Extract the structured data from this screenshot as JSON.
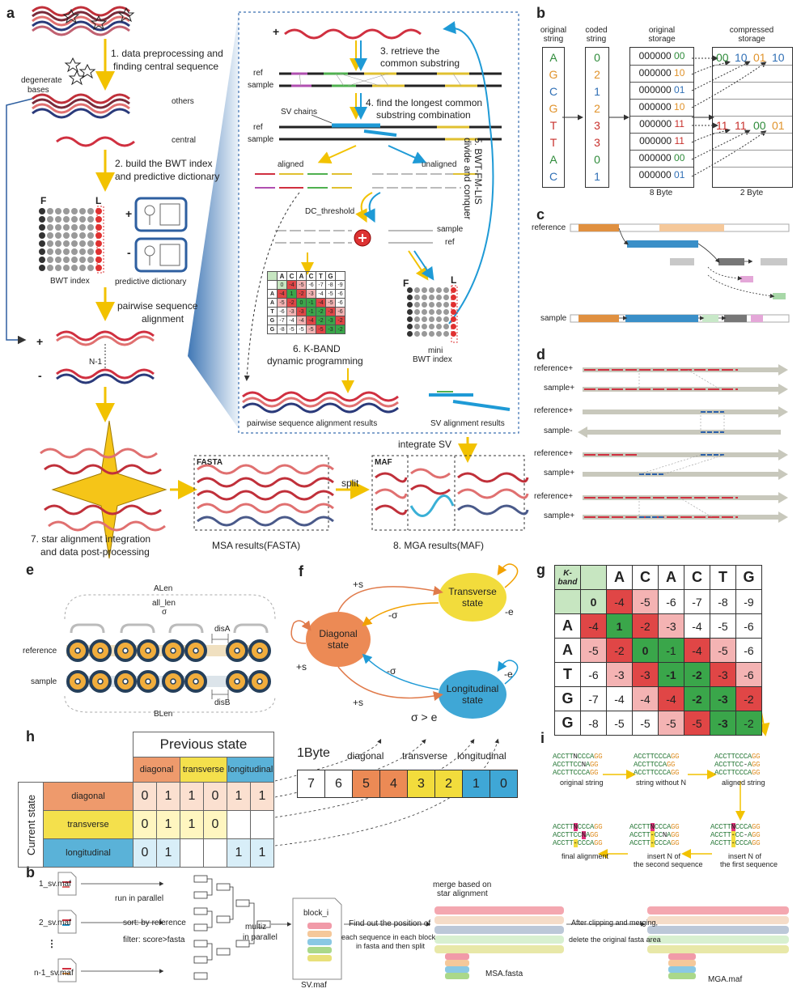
{
  "panels": {
    "a": "a",
    "b": "b",
    "c": "c",
    "d": "d",
    "e": "e",
    "f": "f",
    "g": "g",
    "h": "h",
    "i": "i",
    "b2": "b"
  },
  "panel_a": {
    "step1": "1. data preprocessing and",
    "step1b": "finding central sequence",
    "degenerate": "degenerate",
    "bases": "bases",
    "others": "others",
    "central": "central",
    "step2": "2. build the BWT index",
    "step2b": "and predictive dictionary",
    "F": "F",
    "L": "L",
    "bwt_index": "BWT index",
    "pred_dict": "predictive dictionary",
    "plus": "+",
    "minus": "-",
    "pairwise": "pairwise sequence",
    "pairwise2": "alignment",
    "n1": "N-1",
    "step3": "3. retrieve the",
    "step3b": "common substring",
    "ref": "ref",
    "sample": "sample",
    "step4": "4. find the longest common",
    "step4b": "substring combination",
    "sv_chains": "SV chains",
    "step5": "5. BWT-FM-LIS",
    "step5b": "divide and conquer",
    "aligned": "aligned",
    "unaligned": "unaligned",
    "dc_threshold": "DC_threshold",
    "step6": "6. K-BAND",
    "step6b": "dynamic programming",
    "mini_bwt": "mini",
    "mini_bwt2": "BWT index",
    "pair_results": "pairwise sequence alignment results",
    "sv_results": "SV alignment results",
    "integrate_sv": "integrate SV",
    "fasta": "FASTA",
    "maf": "MAF",
    "split": "split",
    "step7": "7. star alignment integration",
    "step7b": "and data post-processing",
    "msa_results": "MSA results(FASTA)",
    "step8": "8. MGA results(MAF)"
  },
  "mini_dp": {
    "header": [
      "",
      "A",
      "C",
      "A",
      "C",
      "T",
      "G"
    ],
    "rows": [
      [
        "",
        "0",
        "-4",
        "-5",
        "-6",
        "-7",
        "-8",
        "-9"
      ],
      [
        "A",
        "-4",
        "1",
        "-2",
        "-3",
        "-4",
        "-5",
        "-6"
      ],
      [
        "A",
        "-5",
        "-2",
        "0",
        "-1",
        "-4",
        "-5",
        "-6"
      ],
      [
        "T",
        "-6",
        "-3",
        "-3",
        "-1",
        "-2",
        "-3",
        "-6"
      ],
      [
        "G",
        "-7",
        "-4",
        "-4",
        "-4",
        "-2",
        "-3",
        "-2"
      ],
      [
        "G",
        "-8",
        "-5",
        "-5",
        "-5",
        "-5",
        "-3",
        "-2"
      ]
    ]
  },
  "panel_b": {
    "col1": "original",
    "col1b": "string",
    "col2": "coded",
    "col2b": "string",
    "col3": "original",
    "col3b": "storage",
    "col4": "compressed",
    "col4b": "storage",
    "chars": [
      "A",
      "G",
      "C",
      "G",
      "T",
      "T",
      "A",
      "C"
    ],
    "codes": [
      "0",
      "2",
      "1",
      "2",
      "3",
      "3",
      "0",
      "1"
    ],
    "storage_prefix": "000000",
    "storage_suffix": [
      "00",
      "10",
      "01",
      "10",
      "11",
      "11",
      "00",
      "01"
    ],
    "compressed_row1": [
      "00",
      "10",
      "01",
      "10"
    ],
    "compressed_row2": [
      "11",
      "11",
      "00",
      "01"
    ],
    "byte8": "8 Byte",
    "byte2": "2 Byte",
    "colors": {
      "A": "#2e8b3a",
      "G": "#e0922a",
      "C": "#2f6fb5",
      "T": "#c8302c"
    }
  },
  "panel_c": {
    "reference": "reference",
    "sample": "sample"
  },
  "panel_d": {
    "rows": [
      "reference+",
      "sample+",
      "reference+",
      "sample-",
      "reference+",
      "sample+",
      "reference+",
      "sample+"
    ]
  },
  "panel_e": {
    "alen": "ALen",
    "all_len": "all_len",
    "sigma": "σ",
    "disA": "disA",
    "disB": "disB",
    "blen": "BLen",
    "reference": "reference",
    "sample": "sample"
  },
  "panel_f": {
    "diagonal": "Diagonal",
    "diagonal2": "state",
    "transverse": "Transverse",
    "transverse2": "state",
    "longitudinal": "Longitudinal",
    "longitudinal2": "state",
    "plus_s": "+s",
    "minus_sigma": "-σ",
    "minus_e": "-e",
    "cond": "σ > e",
    "colors": {
      "diagonal": "#ec8a55",
      "transverse": "#f2dc3c",
      "longitudinal": "#3fa7d6"
    }
  },
  "panel_g": {
    "kband": "K-band",
    "header": [
      "A",
      "C",
      "A",
      "C",
      "T",
      "G"
    ],
    "rows": [
      {
        "label": "",
        "vals": [
          "0",
          "-4",
          "-5",
          "-6",
          "-7",
          "-8",
          "-9"
        ]
      },
      {
        "label": "A",
        "vals": [
          "-4",
          "1",
          "-2",
          "-3",
          "-4",
          "-5",
          "-6"
        ]
      },
      {
        "label": "A",
        "vals": [
          "-5",
          "-2",
          "0",
          "-1",
          "-4",
          "-5",
          "-6"
        ]
      },
      {
        "label": "T",
        "vals": [
          "-6",
          "-3",
          "-3",
          "-1",
          "-2",
          "-3",
          "-6"
        ]
      },
      {
        "label": "G",
        "vals": [
          "-7",
          "-4",
          "-4",
          "-4",
          "-2",
          "-3",
          "-2"
        ]
      },
      {
        "label": "G",
        "vals": [
          "-8",
          "-5",
          "-5",
          "-5",
          "-5",
          "-3",
          "-2"
        ]
      }
    ],
    "colors": [
      [
        "lgrn",
        "red",
        "pink",
        "",
        "",
        "",
        ""
      ],
      [
        "red",
        "grn",
        "red",
        "pink",
        "",
        "",
        ""
      ],
      [
        "pink",
        "red",
        "grn",
        "grn",
        "red",
        "pink",
        ""
      ],
      [
        "",
        "pink",
        "red",
        "grn",
        "grn",
        "red",
        "pink"
      ],
      [
        "",
        "",
        "pink",
        "red",
        "grn",
        "grn",
        "red"
      ],
      [
        "",
        "",
        "",
        "pink",
        "red",
        "grn",
        "grn"
      ]
    ]
  },
  "panel_h": {
    "previous_state": "Previous state",
    "current_state": "Current state",
    "cols": [
      "diagonal",
      "transverse",
      "longitudinal"
    ],
    "rows": [
      {
        "name": "diagonal",
        "vals": [
          "0",
          "1",
          "1",
          "0",
          "1",
          "1"
        ]
      },
      {
        "name": "transverse",
        "vals": [
          "0",
          "1",
          "1",
          "0",
          "",
          ""
        ]
      },
      {
        "name": "longitudinal",
        "vals": [
          "0",
          "1",
          "",
          "",
          "1",
          "1"
        ]
      }
    ],
    "byte_title": "1Byte",
    "byte_labels": [
      "diagonal",
      "transverse",
      "longitudinal"
    ],
    "bits": [
      "7",
      "6",
      "5",
      "4",
      "3",
      "2",
      "1",
      "0"
    ]
  },
  "panel_i": {
    "orig": [
      "ACCTTNCCCAGG",
      "ACCTTCCNAGG",
      "ACCTTCCCAGG"
    ],
    "without_n": [
      "ACCTTCCCAGG",
      "ACCTTCCAGG",
      "ACCTTCCCAGG"
    ],
    "aligned": [
      "ACCTTCCCAGG",
      "ACCTTCC-AGG",
      "ACCTTCCCAGG"
    ],
    "l_orig": "original string",
    "l_without": "string without N",
    "l_aligned": "aligned string",
    "final": [
      "ACCTTNCCCAGG",
      "ACCTTCCNAGG",
      "ACCTT-CCCAGG"
    ],
    "second": [
      "ACCTTNCCCAGG",
      "ACCTT-CCNAGG",
      "ACCTT-CCCAGG"
    ],
    "first": [
      "ACCTTNCCCAGG",
      "ACCTT-CC-AGG",
      "ACCTT-CCCAGG"
    ],
    "l_final": "final alignment",
    "l_second": "insert N of",
    "l_second2": "the second sequence",
    "l_first": "insert N of",
    "l_first2": "the first sequence"
  },
  "panel_b2": {
    "f1": "1_sv.maf",
    "f2": "2_sv.maf",
    "fn": "n-1_sv.maf",
    "run_parallel": "run in parallel",
    "sort": "sort: by reference",
    "filter": "filter: score>fasta",
    "multiz": "multiz",
    "in_parallel": "in parallel",
    "sv_maf": "SV.maf",
    "block": "block_i",
    "find_pos": "Find out the position of",
    "find_pos2": "each sequence in each block",
    "find_pos3": "in fasta and then split",
    "merge": "merge based on",
    "merge2": "star alignment",
    "msa_fasta": "MSA.fasta",
    "after": "After clipping and merging,",
    "after2": "delete the original fasta area",
    "mga_maf": "MGA.maf"
  }
}
